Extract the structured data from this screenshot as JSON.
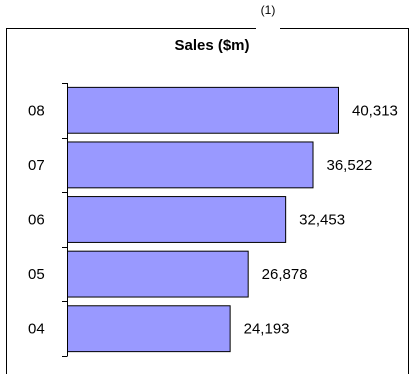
{
  "chart_data": {
    "type": "bar",
    "orientation": "horizontal",
    "title": "Sales ($m)",
    "title_superscript": "(1)",
    "categories": [
      "08",
      "07",
      "06",
      "05",
      "04"
    ],
    "values": [
      40313,
      36522,
      32453,
      26878,
      24193
    ],
    "value_labels": [
      "40,313",
      "36,522",
      "32,453",
      "26,878",
      "24,193"
    ],
    "xlabel": "",
    "ylabel": "",
    "xlim": [
      0,
      45000
    ],
    "grid": false,
    "legend": "none",
    "colors": {
      "bar_fill": "#9999ff",
      "bar_stroke": "#000000",
      "axis": "#000000",
      "frame": "#000000"
    }
  }
}
